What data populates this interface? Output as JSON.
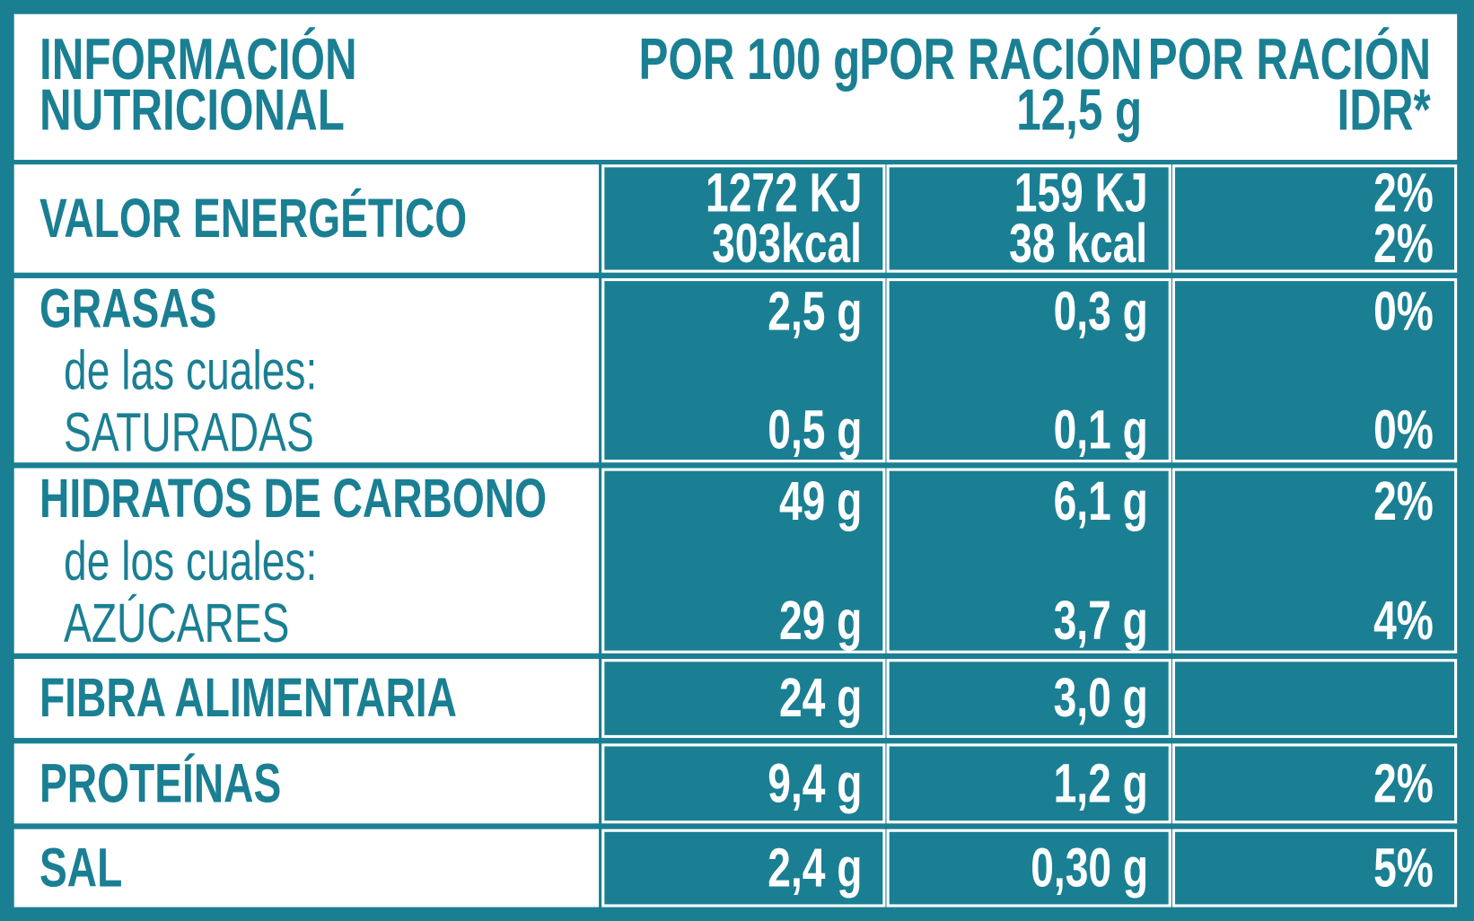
{
  "header": {
    "title": [
      "INFORMACIÓN",
      "NUTRICIONAL"
    ],
    "columns": [
      [
        "POR 100 g"
      ],
      [
        "POR RACIÓN",
        "12,5 g"
      ],
      [
        "POR RACIÓN",
        "IDR*"
      ]
    ]
  },
  "rows": [
    {
      "label": [
        "VALOR ENERGÉTICO"
      ],
      "per100": [
        "1272 KJ",
        "303kcal"
      ],
      "portion": [
        "159 KJ",
        "38 kcal"
      ],
      "idr": [
        "2%",
        "2%"
      ]
    },
    {
      "label": [
        "GRASAS",
        "de las cuales:",
        "SATURADAS"
      ],
      "per100": [
        "2,5 g",
        "0,5 g"
      ],
      "portion": [
        "0,3 g",
        "0,1 g"
      ],
      "idr": [
        "0%",
        "0%"
      ]
    },
    {
      "label": [
        "HIDRATOS DE CARBONO",
        "de los cuales:",
        "AZÚCARES"
      ],
      "per100": [
        "49 g",
        "29 g"
      ],
      "portion": [
        "6,1 g",
        "3,7 g"
      ],
      "idr": [
        "2%",
        "4%"
      ]
    },
    {
      "label": [
        "FIBRA ALIMENTARIA"
      ],
      "per100": [
        "24 g"
      ],
      "portion": [
        "3,0 g"
      ],
      "idr": []
    },
    {
      "label": [
        "PROTEÍNAS"
      ],
      "per100": [
        "9,4 g"
      ],
      "portion": [
        "1,2 g"
      ],
      "idr": [
        "2%"
      ]
    },
    {
      "label": [
        "SAL"
      ],
      "per100": [
        "2,4 g"
      ],
      "portion": [
        "0,30 g"
      ],
      "idr": [
        "5%"
      ]
    }
  ]
}
